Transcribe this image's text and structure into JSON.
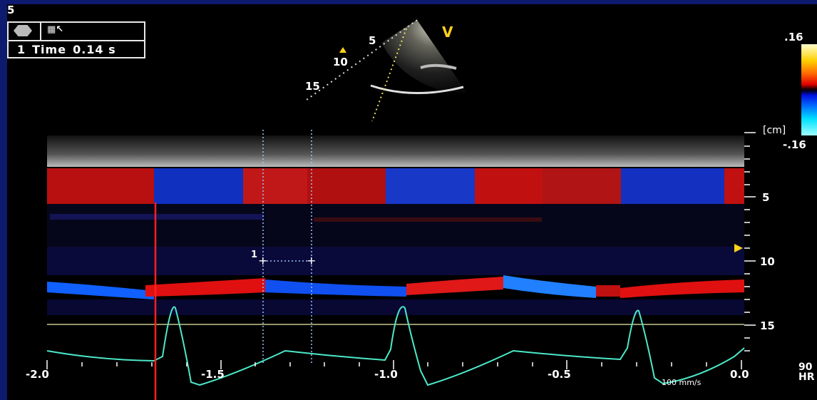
{
  "corner_label": "5",
  "measurement": {
    "index": "1",
    "label": "Time",
    "value": "0.14 s"
  },
  "icons": [
    "stop-hexagon-icon",
    "measure-tool-icon"
  ],
  "view_label": "V",
  "sector_depths": [
    "5",
    "10",
    "15"
  ],
  "velocity_scale": {
    "max": ".16",
    "min": "-.16"
  },
  "depth_axis": {
    "unit": "[cm]",
    "ticks": [
      "5",
      "10",
      "15"
    ]
  },
  "time_axis": {
    "ticks": [
      "-2.0",
      "-1.5",
      "-1.0",
      "-0.5",
      "0.0"
    ]
  },
  "sweep_speed": "100 mm/s",
  "hr": {
    "value": "90",
    "unit": "HR"
  },
  "caliper_label": "1",
  "colors": {
    "background": "#0e1a6e",
    "flow_red": "#e01010",
    "flow_blue": "#1030d0",
    "ecg_trace": "#4ce8c8",
    "marker": "#ff2020",
    "caliper": "#a0c0ff"
  }
}
